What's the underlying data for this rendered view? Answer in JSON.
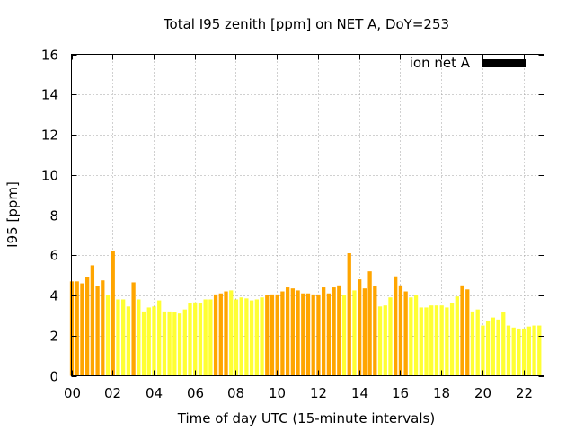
{
  "chart_data": {
    "type": "bar",
    "title": "Total I95 zenith [ppm] on NET A, DoY=253",
    "xlabel": "Time of day UTC (15-minute intervals)",
    "ylabel": "I95 [ppm]",
    "xlim": [
      0,
      23
    ],
    "ylim": [
      0,
      16
    ],
    "xticks": [
      0,
      2,
      4,
      6,
      8,
      10,
      12,
      14,
      16,
      18,
      20,
      22
    ],
    "xtick_labels": [
      "00",
      "02",
      "04",
      "06",
      "08",
      "10",
      "12",
      "14",
      "16",
      "18",
      "20",
      "22"
    ],
    "yticks": [
      0,
      2,
      4,
      6,
      8,
      10,
      12,
      14,
      16
    ],
    "ytick_labels": [
      "0",
      "2",
      "4",
      "6",
      "8",
      "10",
      "12",
      "14",
      "16"
    ],
    "grid": true,
    "legend": {
      "label": "ion net A",
      "placement": "top-right",
      "color": "#000000"
    },
    "colors": {
      "orange": "#ffa500",
      "yellow": "#ffff33"
    },
    "interval_hours": 0.25,
    "values": [
      4.7,
      4.7,
      4.6,
      4.9,
      5.5,
      4.45,
      4.75,
      4.0,
      6.2,
      3.8,
      3.8,
      3.45,
      4.65,
      3.8,
      3.2,
      3.4,
      3.45,
      3.75,
      3.2,
      3.2,
      3.15,
      3.1,
      3.3,
      3.6,
      3.65,
      3.6,
      3.8,
      3.8,
      4.05,
      4.1,
      4.2,
      4.25,
      3.8,
      3.9,
      3.85,
      3.75,
      3.8,
      3.9,
      4.0,
      4.05,
      4.05,
      4.2,
      4.4,
      4.35,
      4.25,
      4.1,
      4.1,
      4.05,
      4.05,
      4.4,
      4.1,
      4.4,
      4.5,
      4.0,
      6.1,
      4.25,
      4.8,
      4.35,
      5.2,
      4.45,
      3.45,
      3.5,
      3.9,
      4.95,
      4.5,
      4.2,
      3.9,
      4.0,
      3.4,
      3.4,
      3.5,
      3.5,
      3.5,
      3.4,
      3.6,
      3.95,
      4.5,
      4.3,
      3.2,
      3.3,
      2.5,
      2.75,
      2.9,
      2.8,
      3.15,
      2.5,
      2.4,
      2.35,
      2.35,
      2.45,
      2.5,
      2.5
    ],
    "bar_colors": [
      "orange",
      "orange",
      "orange",
      "orange",
      "orange",
      "orange",
      "orange",
      "yellow",
      "orange",
      "yellow",
      "yellow",
      "yellow",
      "orange",
      "yellow",
      "yellow",
      "yellow",
      "yellow",
      "yellow",
      "yellow",
      "yellow",
      "yellow",
      "yellow",
      "yellow",
      "yellow",
      "yellow",
      "yellow",
      "yellow",
      "yellow",
      "orange",
      "orange",
      "orange",
      "yellow",
      "yellow",
      "yellow",
      "yellow",
      "yellow",
      "yellow",
      "yellow",
      "orange",
      "orange",
      "orange",
      "orange",
      "orange",
      "orange",
      "orange",
      "orange",
      "orange",
      "orange",
      "orange",
      "orange",
      "orange",
      "orange",
      "orange",
      "yellow",
      "orange",
      "yellow",
      "orange",
      "orange",
      "orange",
      "orange",
      "yellow",
      "yellow",
      "yellow",
      "orange",
      "orange",
      "orange",
      "yellow",
      "yellow",
      "yellow",
      "yellow",
      "yellow",
      "yellow",
      "yellow",
      "yellow",
      "yellow",
      "yellow",
      "orange",
      "orange",
      "yellow",
      "yellow",
      "yellow",
      "yellow",
      "yellow",
      "yellow",
      "yellow",
      "yellow",
      "yellow",
      "yellow",
      "yellow",
      "yellow",
      "yellow",
      "yellow"
    ]
  }
}
